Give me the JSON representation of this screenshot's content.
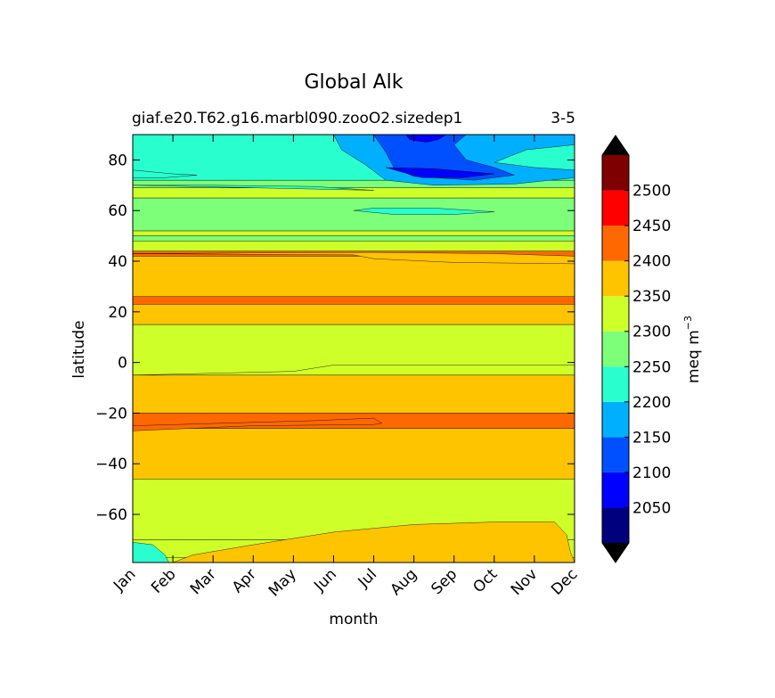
{
  "chart_data": {
    "type": "contour",
    "title": "Global Alk",
    "subtitle_left": "giaf.e20.T62.g16.marbl090.zooO2.sizedep1",
    "subtitle_right": "3-5",
    "xlabel": "month",
    "ylabel": "latitude",
    "x_tick_labels": [
      "Jan",
      "Feb",
      "Mar",
      "Apr",
      "May",
      "Jun",
      "Jul",
      "Aug",
      "Sep",
      "Oct",
      "Nov",
      "Dec"
    ],
    "x_range": [
      0,
      11
    ],
    "y_range": [
      -79,
      90
    ],
    "y_ticks": [
      80,
      60,
      40,
      20,
      0,
      -20,
      -40,
      -60
    ],
    "y_tick_labels": [
      "80",
      "60",
      "40",
      "20",
      "0",
      "−20",
      "−40",
      "−60"
    ],
    "colorbar": {
      "label_text": "meq m",
      "label_exponent": "−3",
      "levels": [
        2000,
        2050,
        2100,
        2150,
        2200,
        2250,
        2300,
        2350,
        2400,
        2450,
        2500,
        2550
      ],
      "tick_values": [
        2050,
        2100,
        2150,
        2200,
        2250,
        2300,
        2350,
        2400,
        2450,
        2500
      ],
      "tick_labels": [
        "2050",
        "2100",
        "2150",
        "2200",
        "2250",
        "2300",
        "2350",
        "2400",
        "2450",
        "2500"
      ],
      "colors": [
        "#00007f",
        "#0000ff",
        "#0050ff",
        "#00b0ff",
        "#29ffce",
        "#7dff7a",
        "#ceff29",
        "#ffc400",
        "#ff6800",
        "#ff0000",
        "#7f0000"
      ],
      "under_color": "#000000",
      "over_color": "#000000"
    },
    "bands": [
      {
        "lat": [
          -79,
          -77
        ],
        "value": 2325
      },
      {
        "lat": [
          -77,
          -70
        ],
        "value": 2325
      },
      {
        "lat": [
          -70,
          -46
        ],
        "value": 2325
      },
      {
        "lat": [
          -46,
          -26
        ],
        "value": 2375
      },
      {
        "lat": [
          -26,
          -20
        ],
        "value": 2425
      },
      {
        "lat": [
          -20,
          -5
        ],
        "value": 2375
      },
      {
        "lat": [
          -5,
          15
        ],
        "value": 2325
      },
      {
        "lat": [
          15,
          23
        ],
        "value": 2375
      },
      {
        "lat": [
          23,
          26
        ],
        "value": 2425
      },
      {
        "lat": [
          26,
          42
        ],
        "value": 2375
      },
      {
        "lat": [
          42,
          44
        ],
        "value": 2425
      },
      {
        "lat": [
          44,
          48
        ],
        "value": 2325
      },
      {
        "lat": [
          48,
          50
        ],
        "value": 2275
      },
      {
        "lat": [
          50,
          52
        ],
        "value": 2325
      },
      {
        "lat": [
          52,
          65
        ],
        "value": 2275
      },
      {
        "lat": [
          65,
          69
        ],
        "value": 2325
      },
      {
        "lat": [
          69,
          72
        ],
        "value": 2275
      },
      {
        "lat": [
          72,
          90
        ],
        "value": 2225
      }
    ],
    "anomalies": [
      {
        "value": 2375,
        "polygon": [
          [
            1.0,
            -79
          ],
          [
            1.5,
            -76
          ],
          [
            3.0,
            -72
          ],
          [
            5.0,
            -67
          ],
          [
            7.0,
            -64
          ],
          [
            9.0,
            -63
          ],
          [
            10.5,
            -63
          ],
          [
            10.8,
            -68
          ],
          [
            10.9,
            -75
          ],
          [
            11,
            -79
          ]
        ]
      },
      {
        "value": 2225,
        "polygon": [
          [
            0,
            -79
          ],
          [
            0,
            -71
          ],
          [
            0.5,
            -72
          ],
          [
            0.8,
            -76
          ],
          [
            0.9,
            -79
          ]
        ]
      },
      {
        "value": 2425,
        "polygon": [
          [
            0,
            -25
          ],
          [
            4.5,
            -23
          ],
          [
            6.0,
            -22
          ],
          [
            6.2,
            -24
          ],
          [
            6.0,
            -24.5
          ],
          [
            3.0,
            -25
          ],
          [
            0,
            -27
          ]
        ]
      },
      {
        "value": 2325,
        "polygon": [
          [
            0,
            -5
          ],
          [
            4.0,
            -3.5
          ],
          [
            5.0,
            -1
          ],
          [
            5.5,
            -1
          ],
          [
            11,
            -1
          ],
          [
            11,
            -5
          ]
        ]
      },
      {
        "value": 2225,
        "polygon": [
          [
            0,
            70
          ],
          [
            2.0,
            70
          ],
          [
            4.5,
            69.5
          ],
          [
            5.5,
            68.5
          ],
          [
            6.0,
            68
          ]
        ]
      },
      {
        "value": 2175,
        "polygon": [
          [
            5.0,
            90
          ],
          [
            5.2,
            84
          ],
          [
            5.8,
            78
          ],
          [
            6.3,
            72
          ],
          [
            7.5,
            70
          ],
          [
            9.5,
            70.5
          ],
          [
            11,
            73
          ],
          [
            11,
            76
          ],
          [
            10.0,
            77
          ],
          [
            9.0,
            79
          ],
          [
            9.8,
            84
          ],
          [
            11,
            86
          ],
          [
            11,
            90
          ]
        ]
      },
      {
        "value": 2125,
        "polygon": [
          [
            6.0,
            90
          ],
          [
            6.3,
            83
          ],
          [
            6.5,
            77
          ],
          [
            7.0,
            73.5
          ],
          [
            8.5,
            72
          ],
          [
            9.5,
            74
          ],
          [
            9.0,
            77
          ],
          [
            8.3,
            80
          ],
          [
            8.0,
            86
          ],
          [
            8.3,
            90
          ]
        ]
      },
      {
        "value": 2075,
        "polygon": [
          [
            6.3,
            77
          ],
          [
            7.2,
            73
          ],
          [
            8.2,
            73
          ],
          [
            9.0,
            74.5
          ],
          [
            7.5,
            76.5
          ]
        ]
      },
      {
        "value": 2075,
        "polygon": [
          [
            6.8,
            90
          ],
          [
            6.9,
            88
          ],
          [
            7.3,
            87
          ],
          [
            7.6,
            88
          ],
          [
            7.8,
            90
          ]
        ]
      },
      {
        "value": 2225,
        "polygon": [
          [
            5.5,
            60
          ],
          [
            6.5,
            58.5
          ],
          [
            8.0,
            58.5
          ],
          [
            9.0,
            59.5
          ],
          [
            7.5,
            61
          ],
          [
            6.0,
            61
          ]
        ]
      },
      {
        "value": 2225,
        "polygon": [
          [
            0,
            76
          ],
          [
            1.0,
            74.5
          ],
          [
            1.6,
            74
          ],
          [
            0.8,
            73
          ],
          [
            0,
            73
          ]
        ]
      },
      {
        "value": 2375,
        "polygon": [
          [
            0,
            43
          ],
          [
            5.5,
            42.5
          ],
          [
            6.0,
            41
          ],
          [
            8.0,
            39.5
          ],
          [
            11,
            39
          ],
          [
            11,
            42
          ],
          [
            9.0,
            43
          ],
          [
            6.0,
            43.5
          ]
        ]
      }
    ]
  }
}
